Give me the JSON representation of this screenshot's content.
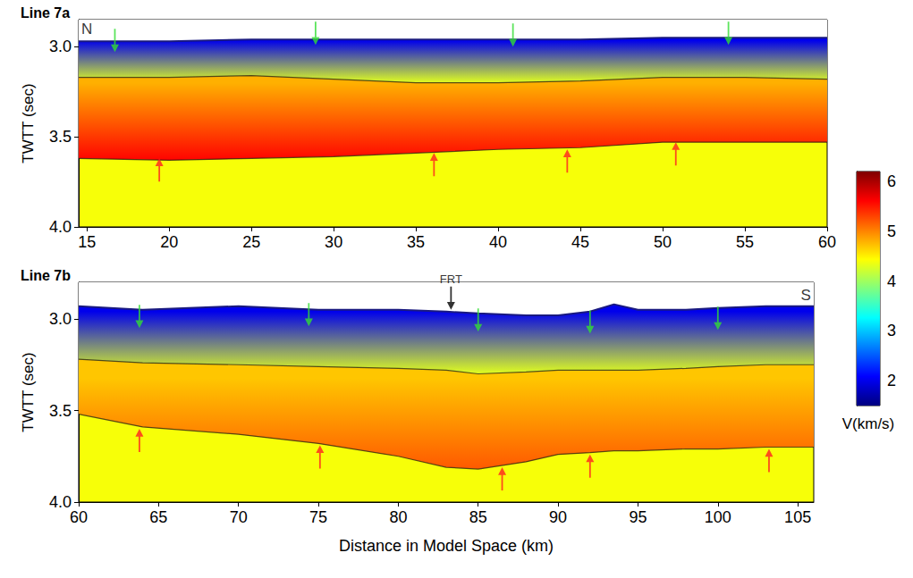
{
  "chart_data": [
    {
      "type": "line",
      "title": "Line 7a",
      "ylabel": "TWTT (sec)",
      "xlim": [
        14.5,
        60
      ],
      "ylim": [
        2.85,
        4.0
      ],
      "xticks": [
        15,
        20,
        25,
        30,
        35,
        40,
        45,
        50,
        55,
        60
      ],
      "yticks": [
        {
          "value": 3.0,
          "label": "3.0"
        },
        {
          "value": 3.5,
          "label": "3.5"
        },
        {
          "value": 4.0,
          "label": "4.0"
        }
      ],
      "lower_velocity": 4.4,
      "series": [
        {
          "type": "line",
          "color": "#ffffff",
          "x": [
            14.5,
            20,
            25,
            30,
            35,
            40,
            45,
            50,
            55,
            60
          ],
          "values": [
            2.97,
            2.97,
            2.96,
            2.96,
            2.96,
            2.96,
            2.96,
            2.95,
            2.95,
            2.95
          ]
        },
        {
          "type": "line",
          "velocity": [
            2.0,
            4.3
          ],
          "x": [
            14.5,
            20,
            25,
            30,
            35,
            40,
            45,
            50,
            55,
            60
          ],
          "values": [
            3.17,
            3.17,
            3.16,
            3.18,
            3.2,
            3.2,
            3.19,
            3.17,
            3.17,
            3.18
          ]
        },
        {
          "type": "line",
          "velocity": [
            4.8,
            5.6
          ],
          "x": [
            14.5,
            20,
            25,
            30,
            35,
            40,
            45,
            50,
            55,
            60
          ],
          "values": [
            3.62,
            3.63,
            3.62,
            3.61,
            3.59,
            3.57,
            3.56,
            3.53,
            3.53,
            3.53
          ]
        },
        {
          "type": "scatter",
          "marker": "arrow_down",
          "color": "#33dd33",
          "x": [
            16.7,
            28.9,
            40.9,
            54
          ],
          "values": [
            3.03,
            2.99,
            3.0,
            2.99
          ]
        },
        {
          "type": "scatter",
          "marker": "arrow_up",
          "color": "#ff2020",
          "x": [
            19.4,
            36.1,
            44.2,
            50.8
          ],
          "values": [
            3.62,
            3.59,
            3.57,
            3.53
          ]
        }
      ],
      "annotations": [
        {
          "text": "N",
          "x": 15.0,
          "y": 2.9
        }
      ]
    },
    {
      "type": "line",
      "title": "Line 7b",
      "ylabel": "TWTT (sec)",
      "xlabel": "Distance in Model Space (km)",
      "xlim": [
        60,
        106
      ],
      "ylim": [
        2.8,
        4.0
      ],
      "xticks": [
        60,
        65,
        70,
        75,
        80,
        85,
        90,
        95,
        100,
        105
      ],
      "yticks": [
        {
          "value": 3.0,
          "label": "3.0"
        },
        {
          "value": 3.5,
          "label": "3.5"
        },
        {
          "value": 4.0,
          "label": "4.0"
        }
      ],
      "lower_velocity": 4.4,
      "series": [
        {
          "type": "line",
          "color": "#ffffff",
          "x": [
            60,
            64,
            70,
            75,
            80,
            83,
            85,
            88,
            90,
            92,
            93.5,
            95,
            98,
            100,
            103,
            106
          ],
          "values": [
            2.93,
            2.95,
            2.93,
            2.95,
            2.95,
            2.96,
            2.97,
            2.98,
            2.98,
            2.96,
            2.92,
            2.95,
            2.95,
            2.94,
            2.93,
            2.93
          ]
        },
        {
          "type": "line",
          "velocity": [
            2.0,
            4.3
          ],
          "x": [
            60,
            64,
            70,
            75,
            80,
            83,
            85,
            88,
            90,
            92,
            93.5,
            95,
            98,
            100,
            103,
            106
          ],
          "values": [
            3.22,
            3.24,
            3.25,
            3.26,
            3.27,
            3.28,
            3.3,
            3.29,
            3.28,
            3.28,
            3.28,
            3.28,
            3.27,
            3.26,
            3.25,
            3.25
          ]
        },
        {
          "type": "line",
          "velocity": [
            4.7,
            5.2
          ],
          "x": [
            60,
            64,
            70,
            75,
            80,
            83,
            85,
            88,
            90,
            92,
            93.5,
            95,
            98,
            100,
            103,
            106
          ],
          "values": [
            3.52,
            3.59,
            3.63,
            3.68,
            3.75,
            3.81,
            3.82,
            3.78,
            3.74,
            3.73,
            3.72,
            3.72,
            3.71,
            3.71,
            3.7,
            3.7
          ]
        },
        {
          "type": "scatter",
          "marker": "arrow_down",
          "color": "#33dd33",
          "x": [
            63.8,
            74.4,
            85,
            92,
            100
          ],
          "values": [
            3.05,
            3.04,
            3.07,
            3.08,
            3.06
          ]
        },
        {
          "type": "scatter",
          "marker": "arrow_up",
          "color": "#ff2020",
          "x": [
            63.8,
            75.1,
            86.5,
            92,
            103.2
          ],
          "values": [
            3.6,
            3.69,
            3.81,
            3.74,
            3.71
          ]
        }
      ],
      "annotations": [
        {
          "text": "S",
          "x": 105.5,
          "y": 2.87
        },
        {
          "text": "FRT",
          "x": 83.3,
          "y": 2.95,
          "marker": "arrow_down",
          "color": "#000000"
        }
      ]
    },
    {
      "type": "colorbar",
      "label": "V(km/s)",
      "ylim": [
        1.5,
        6.2
      ],
      "yticks": [
        2,
        3,
        4,
        5,
        6
      ],
      "colors": [
        "#00007f",
        "#0000ff",
        "#007fff",
        "#00ffff",
        "#7fff7f",
        "#ffff00",
        "#ff7f00",
        "#ff0000",
        "#7f0000"
      ]
    }
  ]
}
